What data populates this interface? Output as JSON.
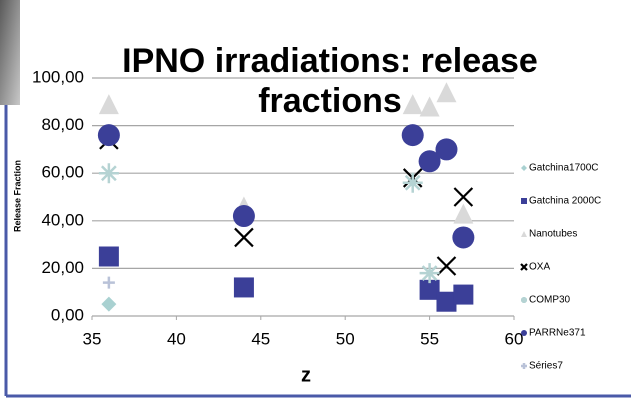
{
  "chart_data": {
    "type": "scatter",
    "title": "IPNO irradiations: release fractions",
    "x_label": "z",
    "y_label": "Release Fraction",
    "xlim": [
      35,
      60
    ],
    "xticks": [
      35,
      40,
      45,
      50,
      55,
      60
    ],
    "ylim": [
      0,
      100
    ],
    "yticks": [
      {
        "value": 0,
        "label": "0,00"
      },
      {
        "value": 20,
        "label": "20,00"
      },
      {
        "value": 40,
        "label": "40,00"
      },
      {
        "value": 60,
        "label": "60,00"
      },
      {
        "value": 80,
        "label": "80,00"
      },
      {
        "value": 100,
        "label": "100,00"
      }
    ],
    "grid": true,
    "legend": "right",
    "series": [
      {
        "name": "Gatchina1700C",
        "color": "#a9d1d1",
        "marker": "diamond",
        "x": [
          36
        ],
        "values": [
          5
        ]
      },
      {
        "name": "Gatchina 2000C",
        "color": "#3b3f98",
        "marker": "square",
        "x": [
          36,
          44,
          55,
          56,
          57
        ],
        "values": [
          25,
          12,
          11,
          6,
          9
        ]
      },
      {
        "name": "Nanotubes",
        "color": "#d9d9d9",
        "marker": "triangle",
        "x": [
          36,
          44,
          54,
          55,
          56,
          57
        ],
        "values": [
          89,
          46,
          89,
          88,
          94,
          43
        ]
      },
      {
        "name": "OXA",
        "color": "#000000",
        "marker": "x",
        "x": [
          36,
          44,
          54,
          56,
          57
        ],
        "values": [
          74,
          33,
          58,
          21,
          50
        ]
      },
      {
        "name": "COMP30",
        "color": "#b5d3d3",
        "marker": "asterisk",
        "x": [
          36,
          54,
          55
        ],
        "values": [
          60,
          56,
          18
        ]
      },
      {
        "name": "PARRNe371",
        "color": "#3b3f98",
        "marker": "circle",
        "x": [
          36,
          44,
          54,
          55,
          56,
          57
        ],
        "values": [
          76,
          42,
          76,
          65,
          70,
          33
        ]
      },
      {
        "name": "Séries7",
        "color": "#b9c2d8",
        "marker": "plus",
        "x": [
          36
        ],
        "values": [
          14
        ]
      }
    ]
  }
}
